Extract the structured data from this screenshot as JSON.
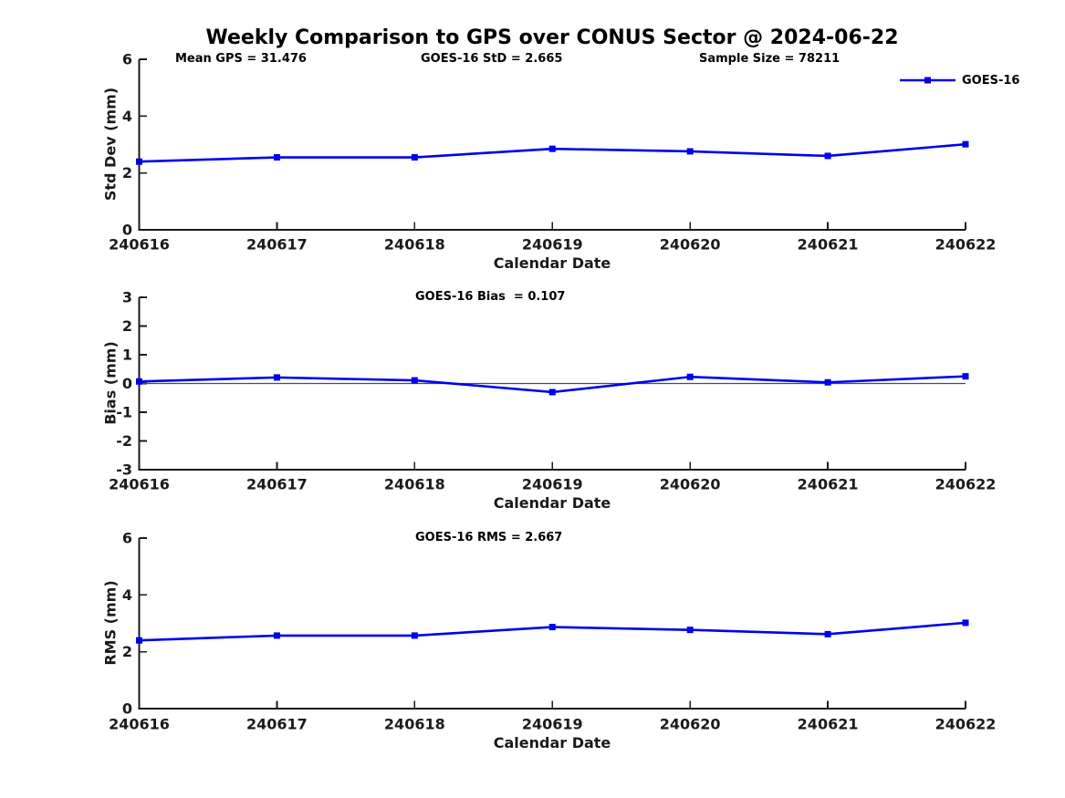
{
  "figure_title": "Weekly Comparison to GPS over CONUS Sector @ 2024-06-22",
  "legend": {
    "label": "GOES-16"
  },
  "colors": {
    "series": "#0000ee",
    "axis": "#1a1a1a",
    "tick_text": "#1a1a1a",
    "zero_line": "#4d4d4d",
    "text": "#000000"
  },
  "chart_data": [
    {
      "type": "line",
      "ylabel": "Std Dev (mm)",
      "xlabel": "Calendar Date",
      "ylim": [
        0,
        6
      ],
      "yticks": [
        0,
        2,
        4,
        6
      ],
      "x": [
        "240616",
        "240617",
        "240618",
        "240619",
        "240620",
        "240621",
        "240622"
      ],
      "series": [
        {
          "name": "GOES-16",
          "color": "#0000ee",
          "marker": "square",
          "values": [
            2.4,
            2.55,
            2.55,
            2.85,
            2.76,
            2.6,
            3.01
          ]
        }
      ],
      "annotations": [
        {
          "text": "Mean GPS = 31.476"
        },
        {
          "text": "GOES-16 StD = 2.665"
        },
        {
          "text": "Sample Size = 78211"
        }
      ],
      "legend_entries": [
        "GOES-16"
      ],
      "grid": false
    },
    {
      "type": "line",
      "ylabel": "Bias (mm)",
      "xlabel": "Calendar Date",
      "ylim": [
        -3,
        3
      ],
      "yticks": [
        -3,
        -2,
        -1,
        0,
        1,
        2,
        3
      ],
      "zero_line": true,
      "x": [
        "240616",
        "240617",
        "240618",
        "240619",
        "240620",
        "240621",
        "240622"
      ],
      "series": [
        {
          "name": "GOES-16",
          "color": "#0000ee",
          "marker": "square",
          "values": [
            0.07,
            0.21,
            0.11,
            -0.3,
            0.23,
            0.04,
            0.25
          ]
        }
      ],
      "annotations": [
        {
          "text": "GOES-16 Bias  = 0.107"
        }
      ],
      "grid": false
    },
    {
      "type": "line",
      "ylabel": "RMS (mm)",
      "xlabel": "Calendar Date",
      "ylim": [
        0,
        6
      ],
      "yticks": [
        0,
        2,
        4,
        6
      ],
      "x": [
        "240616",
        "240617",
        "240618",
        "240619",
        "240620",
        "240621",
        "240622"
      ],
      "series": [
        {
          "name": "GOES-16",
          "color": "#0000ee",
          "marker": "square",
          "values": [
            2.4,
            2.57,
            2.57,
            2.87,
            2.77,
            2.62,
            3.02
          ]
        }
      ],
      "annotations": [
        {
          "text": "GOES-16 RMS = 2.667"
        }
      ],
      "grid": false
    }
  ]
}
